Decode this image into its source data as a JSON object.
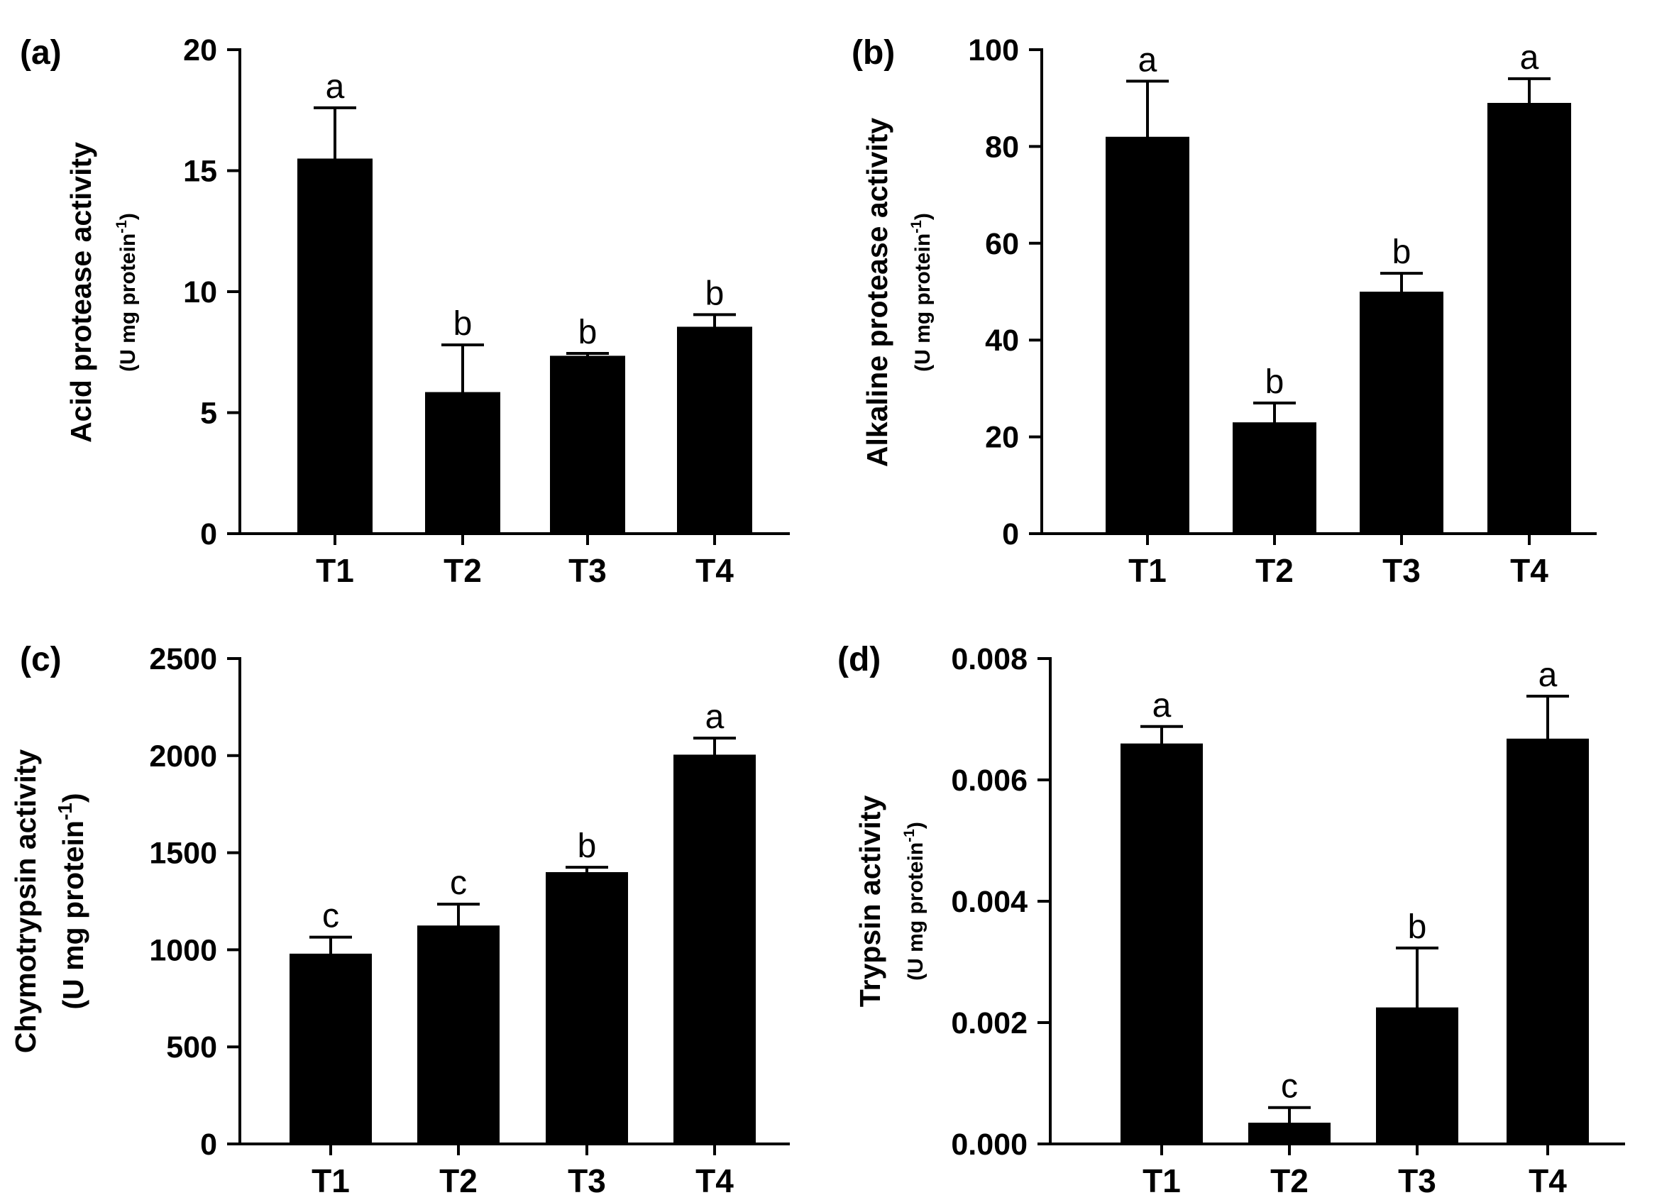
{
  "chart_data": [
    {
      "type": "bar",
      "panel": "(a)",
      "categories": [
        "T1",
        "T2",
        "T3",
        "T4"
      ],
      "values": [
        15.5,
        5.85,
        7.35,
        8.55
      ],
      "errors": [
        2.1,
        1.95,
        0.1,
        0.5
      ],
      "significance": [
        "a",
        "b",
        "b",
        "b"
      ],
      "ylabel": "Acid protease activity",
      "yunit_base": "(U mg protein",
      "yunit_sup": "-1",
      "yunit_close": ")",
      "ylim": [
        0,
        20
      ],
      "yticks": [
        0,
        5,
        10,
        15,
        20
      ],
      "ytick_labels": [
        "0",
        "5",
        "10",
        "15",
        "20"
      ]
    },
    {
      "type": "bar",
      "panel": "(b)",
      "categories": [
        "T1",
        "T2",
        "T3",
        "T4"
      ],
      "values": [
        82,
        23,
        50,
        89
      ],
      "errors": [
        11.5,
        4,
        3.8,
        5
      ],
      "significance": [
        "a",
        "b",
        "b",
        "a"
      ],
      "ylabel": "Alkaline protease activity",
      "yunit_base": "(U mg protein",
      "yunit_sup": "-1",
      "yunit_close": ")",
      "ylim": [
        0,
        100
      ],
      "yticks": [
        0,
        20,
        40,
        60,
        80,
        100
      ],
      "ytick_labels": [
        "0",
        "20",
        "40",
        "60",
        "80",
        "100"
      ]
    },
    {
      "type": "bar",
      "panel": "(c)",
      "categories": [
        "T1",
        "T2",
        "T3",
        "T4"
      ],
      "values": [
        980,
        1125,
        1400,
        2005
      ],
      "errors": [
        85,
        110,
        25,
        85
      ],
      "significance": [
        "c",
        "c",
        "b",
        "a"
      ],
      "ylabel": "Chymotrypsin activity",
      "yunit_base": "(U mg protein",
      "yunit_sup": "-1",
      "yunit_close": ")",
      "ylim": [
        0,
        2500
      ],
      "yticks": [
        0,
        500,
        1000,
        1500,
        2000,
        2500
      ],
      "ytick_labels": [
        "0",
        "500",
        "1000",
        "1500",
        "2000",
        "2500"
      ]
    },
    {
      "type": "bar",
      "panel": "(d)",
      "categories": [
        "T1",
        "T2",
        "T3",
        "T4"
      ],
      "values": [
        0.0066,
        0.00035,
        0.00225,
        0.00668
      ],
      "errors": [
        0.00028,
        0.00025,
        0.00098,
        0.0007
      ],
      "significance": [
        "a",
        "c",
        "b",
        "a"
      ],
      "ylabel": "Trypsin activity",
      "yunit_base": "(U mg protein",
      "yunit_sup": "-1",
      "yunit_close": ")",
      "ylim": [
        0,
        0.008
      ],
      "yticks": [
        0,
        0.002,
        0.004,
        0.006,
        0.008
      ],
      "ytick_labels": [
        "0.000",
        "0.002",
        "0.004",
        "0.006",
        "0.008"
      ]
    }
  ]
}
